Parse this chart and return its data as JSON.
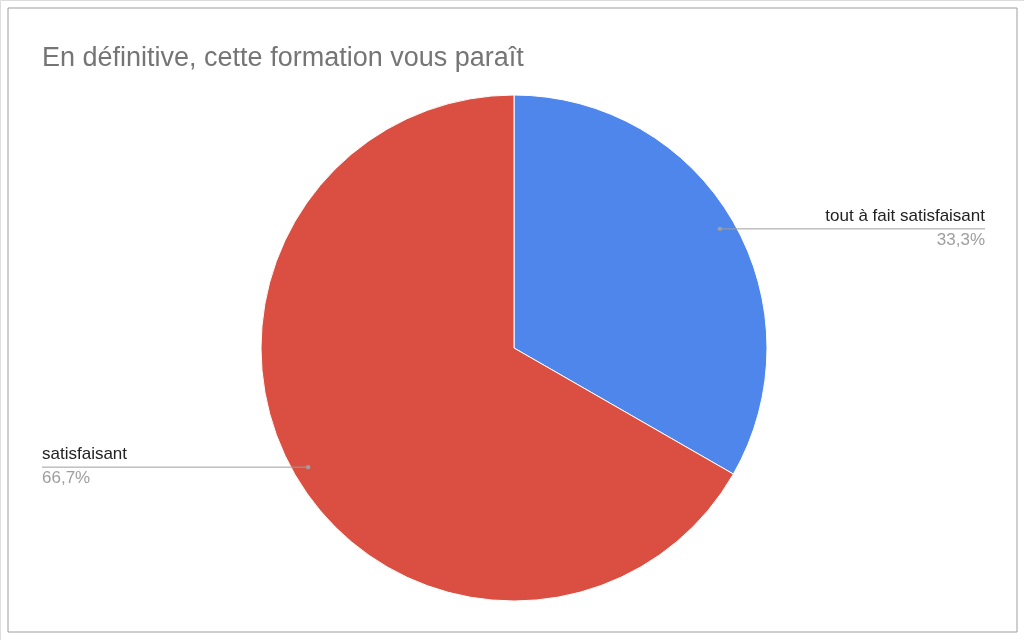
{
  "chart_data": {
    "type": "pie",
    "title": "En définitive, cette formation vous paraît",
    "categories": [
      "tout à fait satisfaisant",
      "satisfaisant"
    ],
    "values": [
      33.3,
      66.7
    ],
    "colors": [
      "#4f86ec",
      "#db4f42"
    ],
    "value_labels": [
      "33,3%",
      "66,7%"
    ]
  }
}
